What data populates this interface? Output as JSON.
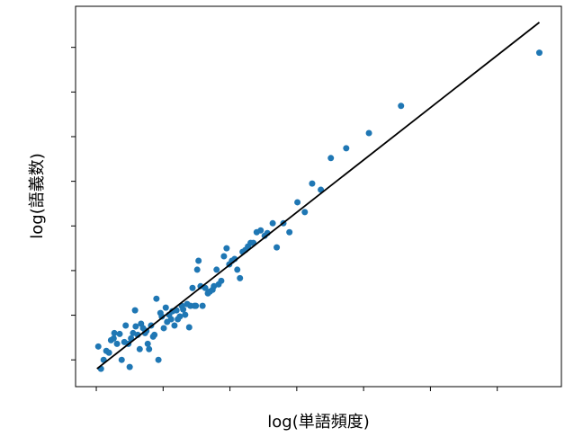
{
  "chart_data": {
    "type": "scatter",
    "xlabel": "log(単語頻度)",
    "ylabel": "log(語義数)",
    "xlim": [
      -0.31,
      6.96
    ],
    "ylim": [
      -0.6,
      7.92
    ],
    "xticks": [
      0,
      1,
      2,
      3,
      4,
      5,
      6
    ],
    "yticks": [
      0,
      1,
      2,
      3,
      4,
      5,
      6,
      7
    ],
    "color": "#1f77b4",
    "x": [
      0.03,
      0.07,
      0.11,
      0.15,
      0.19,
      0.22,
      0.26,
      0.27,
      0.31,
      0.35,
      0.38,
      0.42,
      0.44,
      0.48,
      0.5,
      0.52,
      0.55,
      0.58,
      0.59,
      0.62,
      0.65,
      0.67,
      0.7,
      0.73,
      0.75,
      0.77,
      0.79,
      0.82,
      0.85,
      0.87,
      0.9,
      0.93,
      0.96,
      0.98,
      1.01,
      1.04,
      1.06,
      1.09,
      1.12,
      1.14,
      1.17,
      1.2,
      1.22,
      1.25,
      1.28,
      1.3,
      1.33,
      1.36,
      1.39,
      1.41,
      1.44,
      1.47,
      1.49,
      1.51,
      1.53,
      1.56,
      1.59,
      1.63,
      1.67,
      1.7,
      1.74,
      1.76,
      1.8,
      1.83,
      1.87,
      1.91,
      1.95,
      1.99,
      2.03,
      2.07,
      2.11,
      2.15,
      2.19,
      2.23,
      2.27,
      2.31,
      2.35,
      2.4,
      2.46,
      2.52,
      2.56,
      2.64,
      2.7,
      2.8,
      2.89,
      3.01,
      3.12,
      3.23,
      3.36,
      3.51,
      3.74,
      4.08,
      4.56,
      6.63
    ],
    "values": [
      0.3,
      -0.2,
      0.0,
      0.2,
      0.16,
      0.44,
      0.48,
      0.6,
      0.36,
      0.58,
      0.0,
      0.4,
      0.77,
      0.36,
      -0.16,
      0.48,
      0.6,
      1.11,
      0.75,
      0.56,
      0.24,
      0.81,
      0.71,
      0.6,
      0.65,
      0.36,
      0.24,
      0.77,
      0.52,
      0.56,
      1.37,
      0.0,
      1.05,
      0.97,
      0.71,
      1.17,
      0.85,
      1.01,
      0.91,
      1.09,
      0.77,
      1.11,
      0.91,
      0.97,
      1.21,
      1.13,
      1.01,
      1.25,
      0.73,
      1.21,
      1.61,
      1.21,
      1.21,
      2.02,
      2.22,
      1.65,
      1.21,
      1.61,
      1.49,
      1.53,
      1.57,
      1.65,
      2.02,
      1.69,
      1.77,
      2.32,
      2.5,
      2.14,
      2.22,
      2.26,
      2.02,
      1.83,
      2.42,
      2.46,
      2.54,
      2.62,
      2.62,
      2.86,
      2.9,
      2.78,
      2.84,
      3.06,
      2.52,
      3.06,
      2.86,
      3.53,
      3.31,
      3.95,
      3.81,
      4.52,
      4.74,
      5.08,
      5.69,
      6.88
    ],
    "fit": {
      "color": "#000000",
      "x": [
        0.01,
        6.63
      ],
      "values": [
        -0.2,
        7.56
      ]
    }
  }
}
